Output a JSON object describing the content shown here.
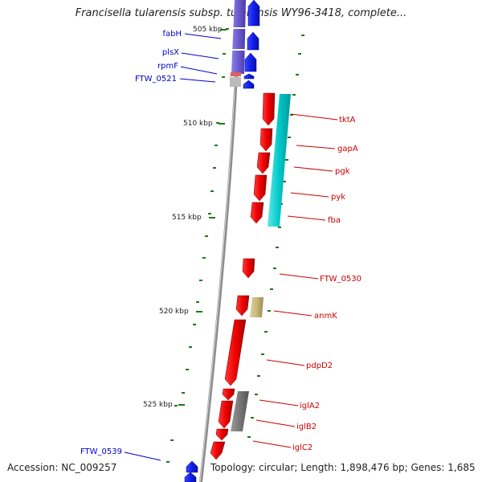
{
  "title": "Francisella tularensis subsp. tularensis WY96-3418, complete...",
  "footer": {
    "accession": "Accession: NC_009257",
    "topology": "Topology: circular; Length: 1,898,476 bp; Genes: 1,685"
  },
  "colors": {
    "backbone": "#8c8c8c",
    "forward_gene": "#0000ee",
    "forward_gene_blue_fill": "#0a14f0",
    "reverse_gene": "#ee0000",
    "forward_label": "#0000cc",
    "reverse_label": "#cc0000",
    "tick": "#1a7a1a",
    "cog_translation": "#6a5acd",
    "cog_energy": "#00c8c8",
    "cog_carbohydrate": "#c8b878",
    "cog_unknown": "#777777"
  },
  "scale_labels": [
    "505 kbp",
    "510 kbp",
    "515 kbp",
    "520 kbp",
    "525 kbp"
  ],
  "forward_genes": [
    {
      "name": "fabH",
      "cog": "cog_translation"
    },
    {
      "name": "plsX",
      "cog": "cog_translation"
    },
    {
      "name": "rpmF",
      "cog": "pink"
    },
    {
      "name": "FTW_0521",
      "cog": "gray"
    },
    {
      "name": "FTW_0539",
      "cog": "none"
    }
  ],
  "reverse_genes": [
    {
      "name": "tktA",
      "cog": "cog_energy"
    },
    {
      "name": "gapA",
      "cog": "cog_energy"
    },
    {
      "name": "pgk",
      "cog": "cog_energy"
    },
    {
      "name": "pyk",
      "cog": "cog_energy"
    },
    {
      "name": "fba",
      "cog": "cog_energy"
    },
    {
      "name": "FTW_0530",
      "cog": "none"
    },
    {
      "name": "anmK",
      "cog": "cog_carbohydrate"
    },
    {
      "name": "pdpD2",
      "cog": "none"
    },
    {
      "name": "iglA2",
      "cog": "cog_unknown"
    },
    {
      "name": "iglB2",
      "cog": "cog_unknown"
    },
    {
      "name": "iglC2",
      "cog": "none"
    }
  ]
}
